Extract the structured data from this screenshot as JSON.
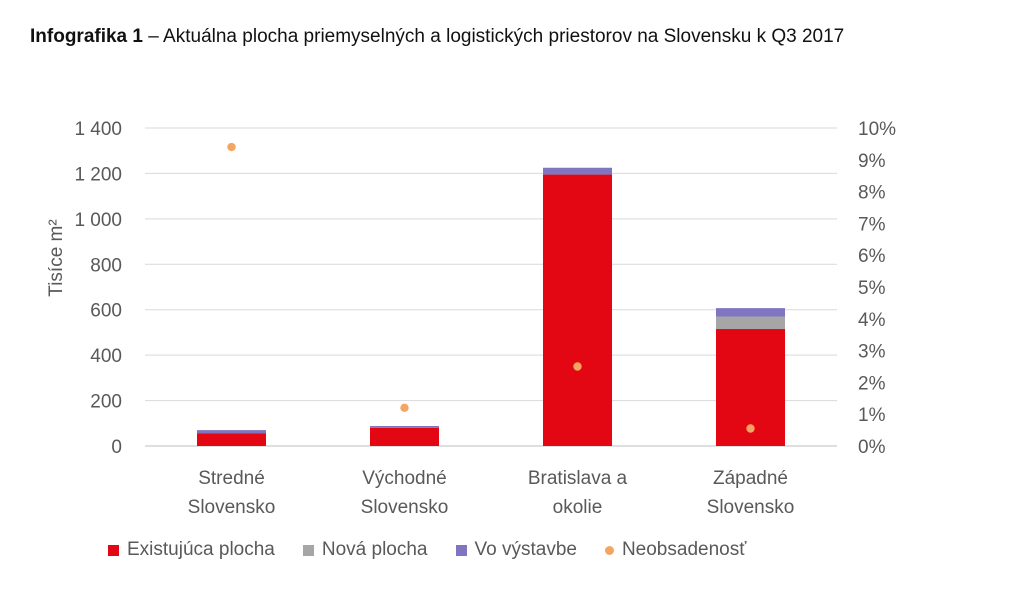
{
  "title": {
    "bold": "Infografika 1",
    "rest": " – Aktuálna plocha priemyselných a logistických priestorov na Slovensku k Q3 2017"
  },
  "chart_data": {
    "type": "bar",
    "stacked": true,
    "categories": [
      "Stredné Slovensko",
      "Východné Slovensko",
      "Bratislava a okolie",
      "Západné Slovensko"
    ],
    "category_lines": [
      [
        "Stredné",
        "Slovensko"
      ],
      [
        "Východné",
        "Slovensko"
      ],
      [
        "Bratislava a",
        "okolie"
      ],
      [
        "Západné",
        "Slovensko"
      ]
    ],
    "series": [
      {
        "name": "Existujúca plocha",
        "values": [
          55,
          80,
          1195,
          515
        ],
        "color": "#E30613"
      },
      {
        "name": "Nová plocha",
        "values": [
          0,
          0,
          0,
          55
        ],
        "color": "#A6A6A6"
      },
      {
        "name": "Vo výstavbe",
        "values": [
          15,
          8,
          30,
          37
        ],
        "color": "#7F75C0"
      }
    ],
    "secondary_series": {
      "name": "Neobsadenosť",
      "type": "scatter",
      "values": [
        9.4,
        1.2,
        2.5,
        0.55
      ],
      "color": "#F4A561"
    },
    "ylabel": "Tisíce m²",
    "ylim": [
      0,
      1400
    ],
    "yticks": [
      0,
      200,
      400,
      600,
      800,
      1000,
      1200,
      1400
    ],
    "ytick_labels": [
      "0",
      "200",
      "400",
      "600",
      "800",
      "1 000",
      "1 200",
      "1 400"
    ],
    "y2lim": [
      0,
      10
    ],
    "y2ticks": [
      0,
      1,
      2,
      3,
      4,
      5,
      6,
      7,
      8,
      9,
      10
    ],
    "y2tick_labels": [
      "0%",
      "1%",
      "2%",
      "3%",
      "4%",
      "5%",
      "6%",
      "7%",
      "8%",
      "9%",
      "10%"
    ],
    "grid": true,
    "legend": "bottom"
  }
}
